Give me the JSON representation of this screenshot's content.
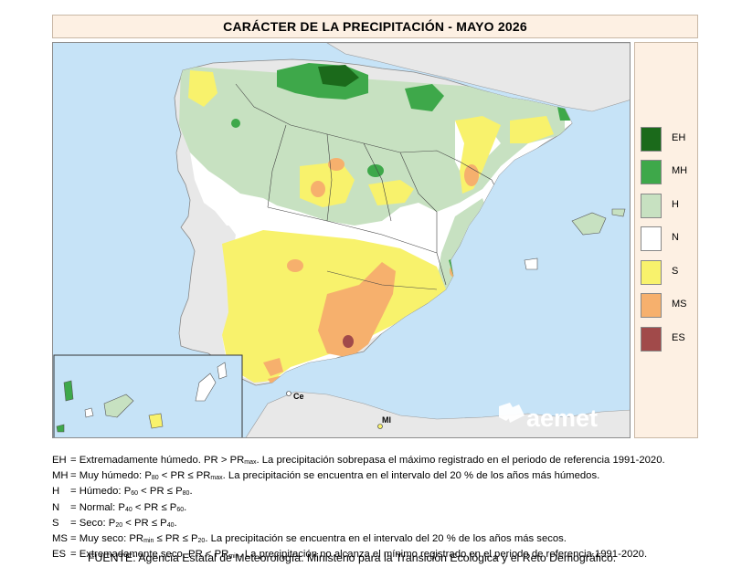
{
  "map": {
    "title": "CARÁCTER DE LA PRECIPITACIÓN - MAYO 2026",
    "place_labels": {
      "ceuta": "Ce",
      "melilla": "Ml"
    },
    "logo_text": "aemet",
    "colors": {
      "sea": "#c6e3f7",
      "neighbour_land": "#e8e8e8",
      "EH": "#1b6a1b",
      "MH": "#3ea84a",
      "H": "#c7e1c1",
      "N": "#ffffff",
      "S": "#f8f26c",
      "MS": "#f6b06d",
      "ES": "#a14a4a"
    }
  },
  "legend": [
    {
      "code": "EH",
      "color": "#1b6a1b"
    },
    {
      "code": "MH",
      "color": "#3ea84a"
    },
    {
      "code": "H",
      "color": "#c7e1c1"
    },
    {
      "code": "N",
      "color": "#ffffff"
    },
    {
      "code": "S",
      "color": "#f8f26c"
    },
    {
      "code": "MS",
      "color": "#f6b06d"
    },
    {
      "code": "ES",
      "color": "#a14a4a"
    }
  ],
  "definitions": [
    {
      "code": "EH",
      "pre": "= Extremadamente húmedo. PR > PR",
      "sub1": "max",
      "mid": ". La precipitación sobrepasa el máximo registrado en el periodo de referencia 1991-2020.",
      "sub2": "",
      "post": ""
    },
    {
      "code": "MH",
      "pre": "= Muy húmedo: P",
      "sub1": "80",
      "mid": " < PR ≤ PR",
      "sub2": "max",
      "post": ". La precipitación se encuentra en el intervalo del 20 % de los años más húmedos."
    },
    {
      "code": "H",
      "pre": "= Húmedo: P",
      "sub1": "60",
      "mid": " < PR ≤ P",
      "sub2": "80",
      "post": "."
    },
    {
      "code": "N",
      "pre": "= Normal: P",
      "sub1": "40",
      "mid": " < PR ≤ P",
      "sub2": "60",
      "post": "."
    },
    {
      "code": "S",
      "pre": "= Seco: P",
      "sub1": "20",
      "mid": " < PR ≤ P",
      "sub2": "40",
      "post": "."
    },
    {
      "code": "MS",
      "pre": "= Muy seco: PR",
      "sub1": "min",
      "mid": " ≤ PR ≤ P",
      "sub2": "20",
      "post": ". La precipitación se encuentra en el intervalo del 20 % de los años más secos."
    },
    {
      "code": "ES",
      "pre": "= Extremadamente seco. PR < PR",
      "sub1": "min",
      "mid": ". La precipitación no alcanza el mínimo registrado en el periodo de referencia 1991-2020.",
      "sub2": "",
      "post": ""
    }
  ],
  "source": "FUENTE: Agencia Estatal de Meteorología. Ministerio para la Transición Ecológica y el Reto Demográfico."
}
